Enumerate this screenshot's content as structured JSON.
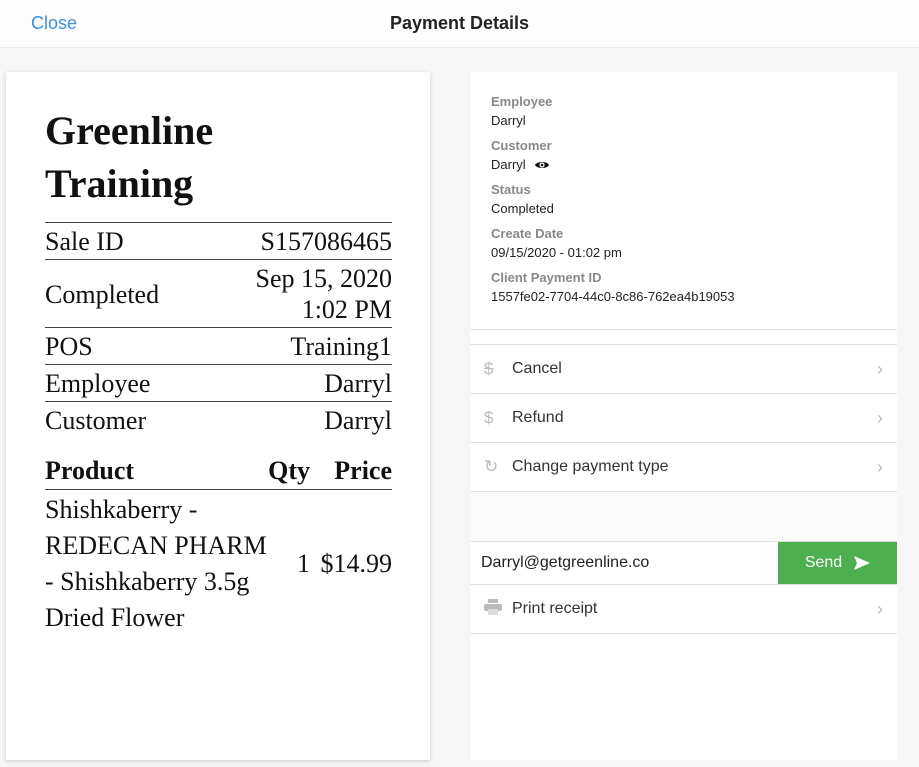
{
  "header": {
    "close_label": "Close",
    "title": "Payment Details"
  },
  "receipt": {
    "store_name": "Greenline Training",
    "rows": [
      {
        "label": "Sale ID",
        "value": "S157086465"
      },
      {
        "label": "Completed",
        "value_line1": "Sep 15, 2020",
        "value_line2": "1:02 PM"
      },
      {
        "label": "POS",
        "value": "Training1"
      },
      {
        "label": "Employee",
        "value": "Darryl"
      },
      {
        "label": "Customer",
        "value": "Darryl"
      }
    ],
    "columns": {
      "product": "Product",
      "qty": "Qty",
      "price": "Price"
    },
    "items": [
      {
        "product": "Shishkaberry - REDECAN PHARM - Shishkaberry 3.5g Dried Flower",
        "qty": "1",
        "price": "$14.99"
      }
    ]
  },
  "details": {
    "employee_label": "Employee",
    "employee": "Darryl",
    "customer_label": "Customer",
    "customer": "Darryl",
    "status_label": "Status",
    "status": "Completed",
    "create_date_label": "Create Date",
    "create_date": "09/15/2020 - 01:02 pm",
    "client_payment_id_label": "Client Payment ID",
    "client_payment_id": "1557fe02-7704-44c0-8c86-762ea4b19053"
  },
  "actions": {
    "cancel": "Cancel",
    "refund": "Refund",
    "change_payment_type": "Change payment type",
    "email_value": "Darryl@getgreenline.co",
    "send": "Send",
    "print_receipt": "Print receipt"
  },
  "colors": {
    "accent": "#3d8fe0",
    "send_button": "#4caf50"
  }
}
